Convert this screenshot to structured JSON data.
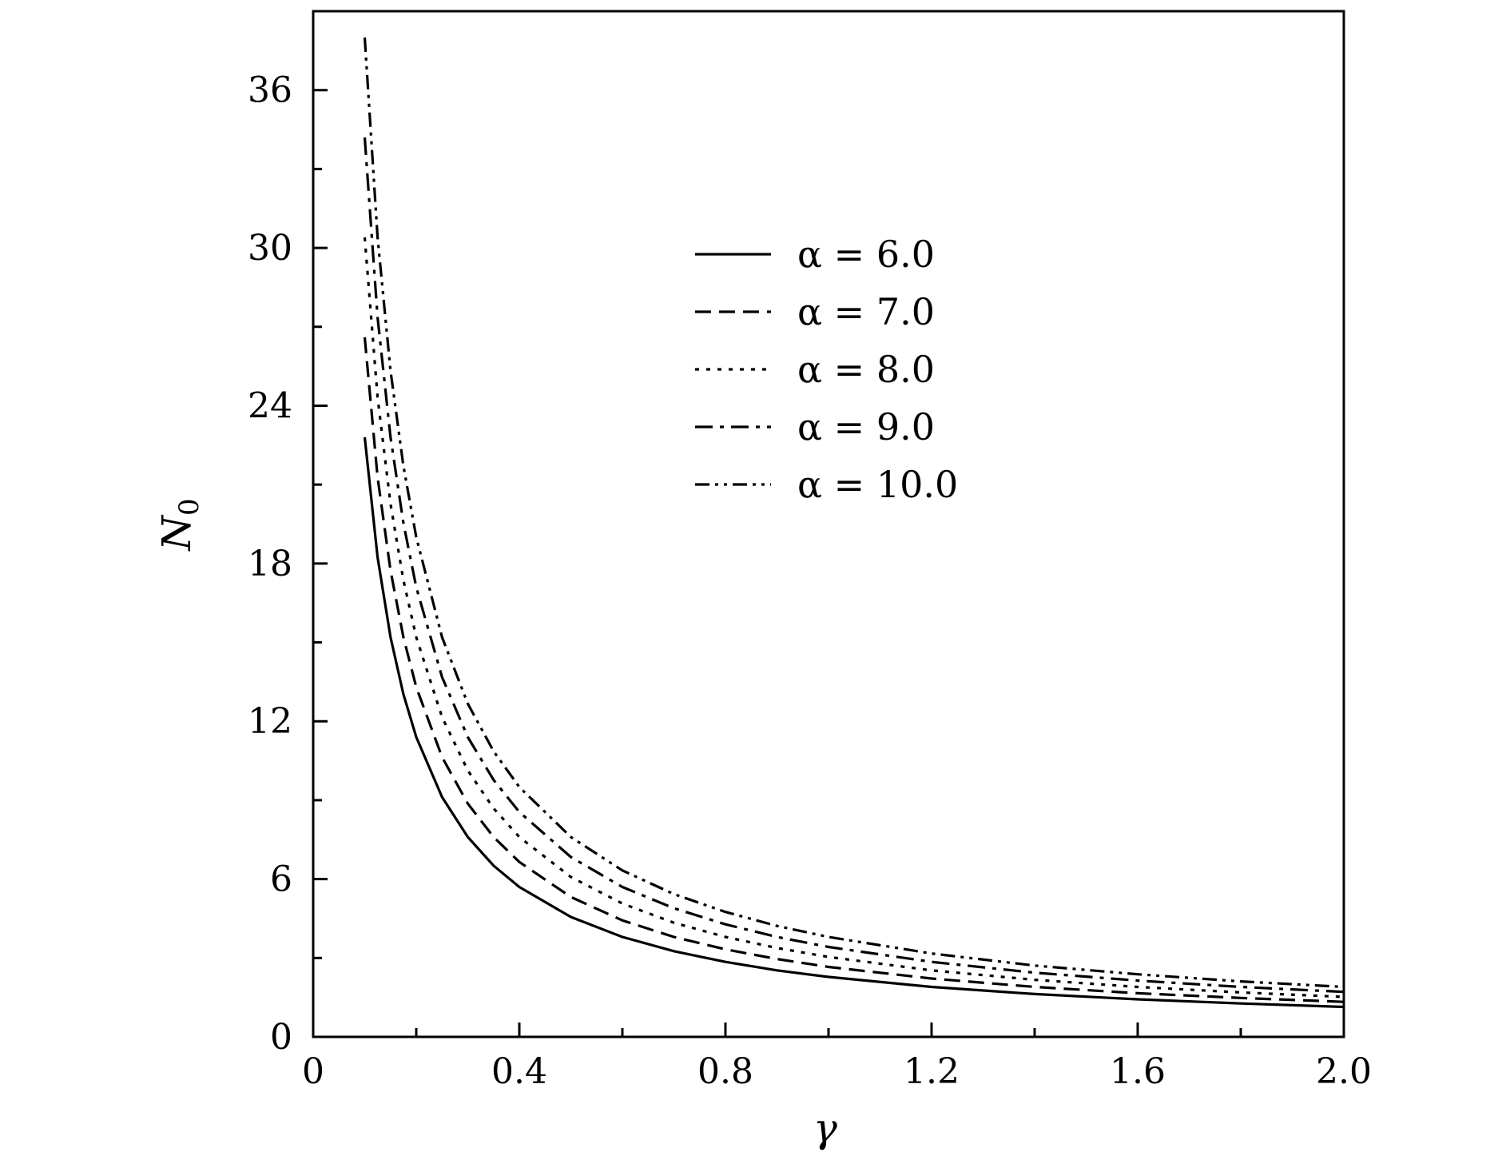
{
  "chart_data": {
    "type": "line",
    "title": "",
    "xlabel": "γ",
    "ylabel": "N",
    "ylabel_subscript": "0",
    "xlim": [
      0,
      2.0
    ],
    "ylim": [
      0,
      39
    ],
    "xticks": [
      0,
      0.4,
      0.8,
      1.2,
      1.6,
      2.0
    ],
    "xtick_labels": [
      "0",
      "0.4",
      "0.8",
      "1.2",
      "1.6",
      "2.0"
    ],
    "xminor": [
      0.2,
      0.6,
      1.0,
      1.4,
      1.8
    ],
    "yticks": [
      0,
      6,
      12,
      18,
      24,
      30,
      36
    ],
    "ytick_labels": [
      "0",
      "6",
      "12",
      "18",
      "24",
      "30",
      "36"
    ],
    "yminor": [
      3,
      9,
      15,
      21,
      27,
      33
    ],
    "grid": false,
    "legend_position": "upper-center",
    "x": [
      0.1,
      0.125,
      0.15,
      0.175,
      0.2,
      0.25,
      0.3,
      0.35,
      0.4,
      0.5,
      0.6,
      0.7,
      0.8,
      0.9,
      1.0,
      1.2,
      1.4,
      1.6,
      1.8,
      2.0
    ],
    "series": [
      {
        "name": "α = 6.0",
        "dash": "solid",
        "values": [
          22.8,
          18.24,
          15.2,
          13.03,
          11.4,
          9.12,
          7.6,
          6.51,
          5.7,
          4.56,
          3.8,
          3.26,
          2.85,
          2.53,
          2.28,
          1.9,
          1.63,
          1.43,
          1.27,
          1.14
        ]
      },
      {
        "name": "α = 7.0",
        "dash": "dashed",
        "values": [
          26.6,
          21.28,
          17.73,
          15.2,
          13.3,
          10.64,
          8.87,
          7.6,
          6.65,
          5.32,
          4.43,
          3.8,
          3.33,
          2.96,
          2.66,
          2.22,
          1.9,
          1.66,
          1.48,
          1.33
        ]
      },
      {
        "name": "α = 8.0",
        "dash": "dotted",
        "values": [
          30.4,
          24.32,
          20.27,
          17.37,
          15.2,
          12.16,
          10.13,
          8.69,
          7.6,
          6.08,
          5.07,
          4.34,
          3.8,
          3.38,
          3.04,
          2.53,
          2.17,
          1.9,
          1.69,
          1.52
        ]
      },
      {
        "name": "α = 9.0",
        "dash": "dashdot",
        "values": [
          34.2,
          27.36,
          22.8,
          19.54,
          17.1,
          13.68,
          11.4,
          9.77,
          8.55,
          6.84,
          5.7,
          4.89,
          4.28,
          3.8,
          3.42,
          2.85,
          2.44,
          2.14,
          1.9,
          1.71
        ]
      },
      {
        "name": "α = 10.0",
        "dash": "dashdotdot",
        "values": [
          38.0,
          30.4,
          25.33,
          21.71,
          19.0,
          15.2,
          12.67,
          10.86,
          9.5,
          7.6,
          6.33,
          5.43,
          4.75,
          4.22,
          3.8,
          3.17,
          2.71,
          2.38,
          2.11,
          1.9
        ]
      }
    ]
  }
}
